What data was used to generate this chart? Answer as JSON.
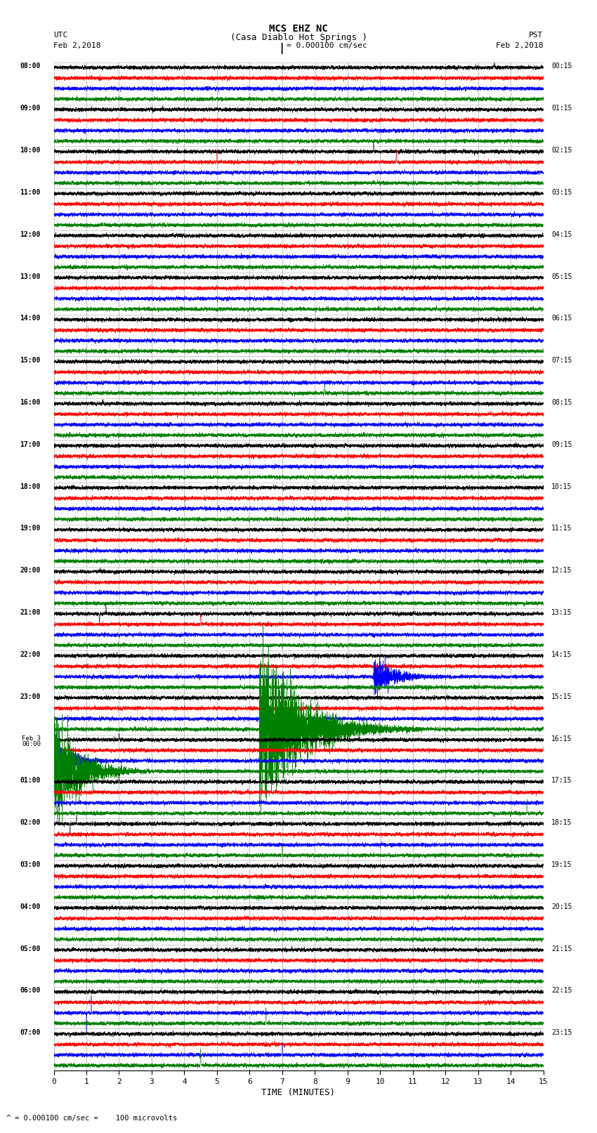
{
  "title_line1": "MCS EHZ NC",
  "title_line2": "(Casa Diablo Hot Springs )",
  "scale_label": "= 0.000100 cm/sec",
  "footer_label": "= 0.000100 cm/sec =    100 microvolts",
  "utc_label": "UTC",
  "utc_date": "Feb 2,2018",
  "pst_label": "PST",
  "pst_date": "Feb 2,2018",
  "xlabel": "TIME (MINUTES)",
  "left_times": [
    "08:00",
    "09:00",
    "10:00",
    "11:00",
    "12:00",
    "13:00",
    "14:00",
    "15:00",
    "16:00",
    "17:00",
    "18:00",
    "19:00",
    "20:00",
    "21:00",
    "22:00",
    "23:00",
    "00:00",
    "01:00",
    "02:00",
    "03:00",
    "04:00",
    "05:00",
    "06:00",
    "07:00"
  ],
  "right_times": [
    "00:15",
    "01:15",
    "02:15",
    "03:15",
    "04:15",
    "05:15",
    "06:15",
    "07:15",
    "08:15",
    "09:15",
    "10:15",
    "11:15",
    "12:15",
    "13:15",
    "14:15",
    "15:15",
    "16:15",
    "17:15",
    "18:15",
    "19:15",
    "20:15",
    "21:15",
    "22:15",
    "23:15"
  ],
  "n_rows": 24,
  "n_traces_per_row": 4,
  "colors": [
    "black",
    "red",
    "blue",
    "green"
  ],
  "bg_color": "#ffffff",
  "grid_color": "#aaaaaa",
  "xmin": 0,
  "xmax": 15,
  "x_ticks": [
    0,
    1,
    2,
    3,
    4,
    5,
    6,
    7,
    8,
    9,
    10,
    11,
    12,
    13,
    14,
    15
  ],
  "fig_width": 8.5,
  "fig_height": 16.13,
  "dpi": 100
}
